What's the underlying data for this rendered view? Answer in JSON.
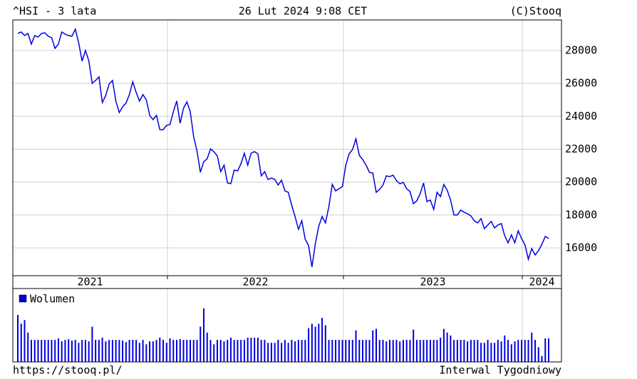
{
  "chart_data": {
    "type": "line",
    "title": "^HSI - 3 lata",
    "subtitle": "26 Lut 2024 9:08 CET",
    "source": "(C)Stooq",
    "color": "#0000e0",
    "values": [
      29040,
      29130,
      28910,
      29040,
      28390,
      28910,
      28820,
      29040,
      29080,
      28870,
      28780,
      28130,
      28390,
      29130,
      29000,
      28910,
      28870,
      29300,
      28480,
      27350,
      28000,
      27390,
      26010,
      26180,
      26400,
      24840,
      25270,
      25960,
      26180,
      24930,
      24230,
      24580,
      24800,
      25320,
      26100,
      25450,
      24930,
      25320,
      25010,
      24060,
      23800,
      24060,
      23190,
      23190,
      23450,
      23500,
      24280,
      24930,
      23580,
      24490,
      24880,
      24280,
      22760,
      21890,
      20600,
      21250,
      21420,
      22020,
      21850,
      21590,
      20640,
      21030,
      19950,
      19900,
      20730,
      20680,
      21120,
      21760,
      21030,
      21760,
      21850,
      21720,
      20380,
      20640,
      20160,
      20250,
      20160,
      19820,
      20120,
      19470,
      19380,
      18600,
      17910,
      17130,
      17650,
      16530,
      16140,
      14840,
      16270,
      17310,
      17910,
      17520,
      18520,
      19860,
      19470,
      19600,
      19730,
      21030,
      21720,
      21980,
      22630,
      21630,
      21370,
      21030,
      20600,
      20550,
      19380,
      19560,
      19820,
      20380,
      20340,
      20420,
      20080,
      19900,
      19990,
      19600,
      19430,
      18690,
      18860,
      19300,
      19950,
      18820,
      18910,
      18340,
      19380,
      19120,
      19860,
      19510,
      18910,
      18000,
      18000,
      18300,
      18170,
      18080,
      17950,
      17650,
      17520,
      17780,
      17170,
      17390,
      17610,
      17220,
      17390,
      17480,
      16740,
      16310,
      16790,
      16310,
      17040,
      16570,
      16180,
      15310,
      15960,
      15570,
      15830,
      16220,
      16700,
      16570
    ],
    "ylim": [
      14310,
      29860
    ],
    "yticks": [
      16000,
      18000,
      20000,
      22000,
      24000,
      26000,
      28000
    ],
    "grid": true,
    "year_labels": [
      "2021",
      "2022",
      "2023",
      "2024"
    ],
    "volume": {
      "name": "Wolumen",
      "color": "#0000e0",
      "ylim": [
        0,
        100
      ],
      "values": [
        64,
        52,
        57,
        40,
        30,
        30,
        30,
        30,
        30,
        30,
        30,
        30,
        32,
        28,
        30,
        31,
        29,
        30,
        26,
        30,
        30,
        28,
        48,
        30,
        30,
        33,
        28,
        30,
        30,
        30,
        30,
        29,
        27,
        30,
        30,
        30,
        26,
        30,
        24,
        28,
        28,
        30,
        33,
        30,
        26,
        32,
        30,
        30,
        31,
        30,
        30,
        30,
        30,
        30,
        48,
        73,
        40,
        30,
        24,
        30,
        30,
        28,
        30,
        33,
        30,
        30,
        30,
        30,
        33,
        33,
        33,
        33,
        30,
        30,
        26,
        26,
        26,
        30,
        26,
        30,
        26,
        30,
        28,
        30,
        30,
        30,
        46,
        52,
        48,
        52,
        60,
        50,
        30,
        30,
        30,
        30,
        30,
        30,
        30,
        30,
        43,
        30,
        30,
        30,
        30,
        43,
        45,
        30,
        30,
        28,
        30,
        30,
        30,
        28,
        30,
        30,
        30,
        44,
        30,
        30,
        30,
        30,
        30,
        30,
        30,
        33,
        45,
        40,
        36,
        30,
        30,
        30,
        30,
        28,
        30,
        30,
        30,
        26,
        26,
        30,
        26,
        26,
        30,
        28,
        36,
        30,
        24,
        28,
        30,
        30,
        30,
        30,
        40,
        30,
        20,
        8,
        32,
        32
      ]
    },
    "url": "https://stooq.pl/",
    "interval": "Interwal Tygodniowy"
  }
}
